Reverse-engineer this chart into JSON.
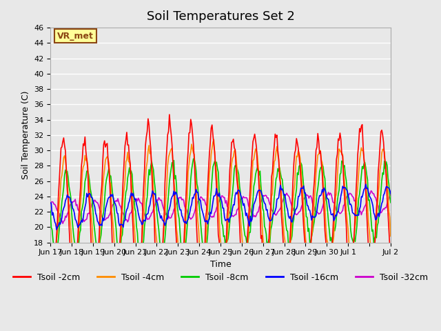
{
  "title": "Soil Temperatures Set 2",
  "xlabel": "Time",
  "ylabel": "Soil Temperature (C)",
  "ylim": [
    18,
    46
  ],
  "yticks": [
    18,
    20,
    22,
    24,
    26,
    28,
    30,
    32,
    34,
    36,
    38,
    40,
    42,
    44,
    46
  ],
  "plot_bg_color": "#e8e8e8",
  "grid_color": "#ffffff",
  "annotation_text": "VR_met",
  "annotation_bg": "#ffff99",
  "annotation_border": "#8b4513",
  "series_colors": [
    "#ff0000",
    "#ff8c00",
    "#00cc00",
    "#0000ff",
    "#cc00cc"
  ],
  "series_labels": [
    "Tsoil -2cm",
    "Tsoil -4cm",
    "Tsoil -8cm",
    "Tsoil -16cm",
    "Tsoil -32cm"
  ],
  "date_labels": [
    "Jun 17",
    "Jun 18",
    "Jun 19",
    "Jun 20",
    "Jun 21",
    "Jun 22",
    "Jun 23",
    "Jun 24",
    "Jun 25",
    "Jun 26",
    "Jun 27",
    "Jun 28",
    "Jun 29",
    "Jun 30",
    "Jul 1",
    "",
    "Jul 2"
  ],
  "num_days": 16,
  "title_fontsize": 13,
  "legend_fontsize": 9,
  "tick_fontsize": 8,
  "label_fontsize": 9
}
